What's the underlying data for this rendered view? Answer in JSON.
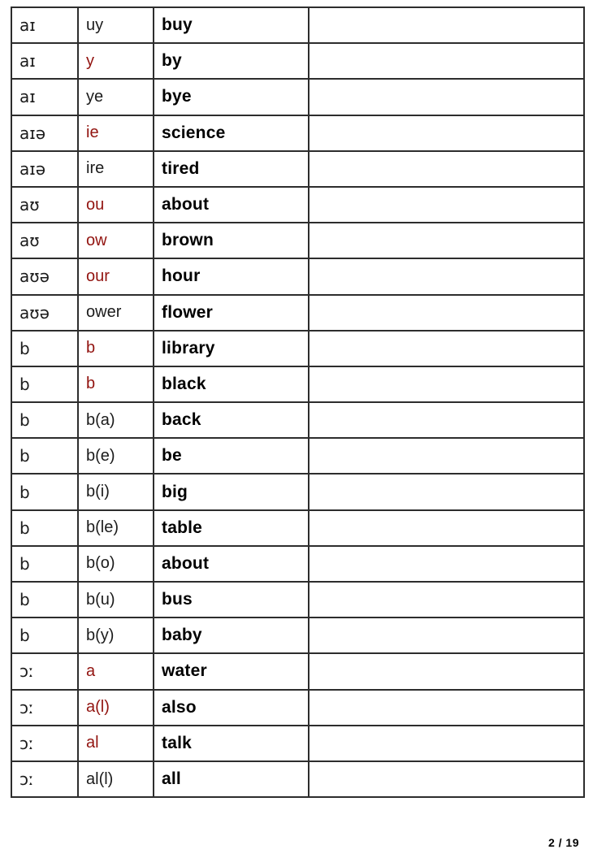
{
  "page": {
    "colors": {
      "accent_red": "#921410",
      "table_border": "#2d2d2d",
      "text": "#1c1c1c"
    },
    "table": {
      "rows": [
        {
          "ipa": "aɪ",
          "spelling": "uy",
          "spelling_color": "black",
          "word": "buy",
          "notes": ""
        },
        {
          "ipa": "aɪ",
          "spelling": "y",
          "spelling_color": "red",
          "word": "by",
          "notes": ""
        },
        {
          "ipa": "aɪ",
          "spelling": "ye",
          "spelling_color": "black",
          "word": "bye",
          "notes": ""
        },
        {
          "ipa": "aɪə",
          "spelling": "ie",
          "spelling_color": "red",
          "word": "science",
          "notes": ""
        },
        {
          "ipa": "aɪə",
          "spelling": "ire",
          "spelling_color": "black",
          "word": "tired",
          "notes": ""
        },
        {
          "ipa": "aʊ",
          "spelling": "ou",
          "spelling_color": "red",
          "word": "about",
          "notes": ""
        },
        {
          "ipa": "aʊ",
          "spelling": "ow",
          "spelling_color": "red",
          "word": "brown",
          "notes": ""
        },
        {
          "ipa": "aʊə",
          "spelling": "our",
          "spelling_color": "red",
          "word": "hour",
          "notes": ""
        },
        {
          "ipa": "aʊə",
          "spelling": "ower",
          "spelling_color": "black",
          "word": "flower",
          "notes": ""
        },
        {
          "ipa": "b",
          "spelling": "b",
          "spelling_color": "red",
          "word": "library",
          "notes": ""
        },
        {
          "ipa": "b",
          "spelling": "b",
          "spelling_color": "red",
          "word": "black",
          "notes": ""
        },
        {
          "ipa": "b",
          "spelling": "b(a)",
          "spelling_color": "black",
          "word": "back",
          "notes": ""
        },
        {
          "ipa": "b",
          "spelling": "b(e)",
          "spelling_color": "black",
          "word": "be",
          "notes": ""
        },
        {
          "ipa": "b",
          "spelling": "b(i)",
          "spelling_color": "black",
          "word": "big",
          "notes": ""
        },
        {
          "ipa": "b",
          "spelling": "b(le)",
          "spelling_color": "black",
          "word": "table",
          "notes": ""
        },
        {
          "ipa": "b",
          "spelling": "b(o)",
          "spelling_color": "black",
          "word": "about",
          "notes": ""
        },
        {
          "ipa": "b",
          "spelling": "b(u)",
          "spelling_color": "black",
          "word": "bus",
          "notes": ""
        },
        {
          "ipa": "b",
          "spelling": "b(y)",
          "spelling_color": "black",
          "word": "baby",
          "notes": ""
        },
        {
          "ipa": "ɔː",
          "spelling": "a",
          "spelling_color": "red",
          "word": "water",
          "notes": ""
        },
        {
          "ipa": "ɔː",
          "spelling": "a(l)",
          "spelling_color": "red",
          "word": "also",
          "notes": ""
        },
        {
          "ipa": "ɔː",
          "spelling": "al",
          "spelling_color": "red",
          "word": "talk",
          "notes": ""
        },
        {
          "ipa": "ɔː",
          "spelling": "al(l)",
          "spelling_color": "black",
          "word": "all",
          "notes": ""
        }
      ]
    },
    "footer": {
      "page_indicator": "2 / 19"
    }
  }
}
